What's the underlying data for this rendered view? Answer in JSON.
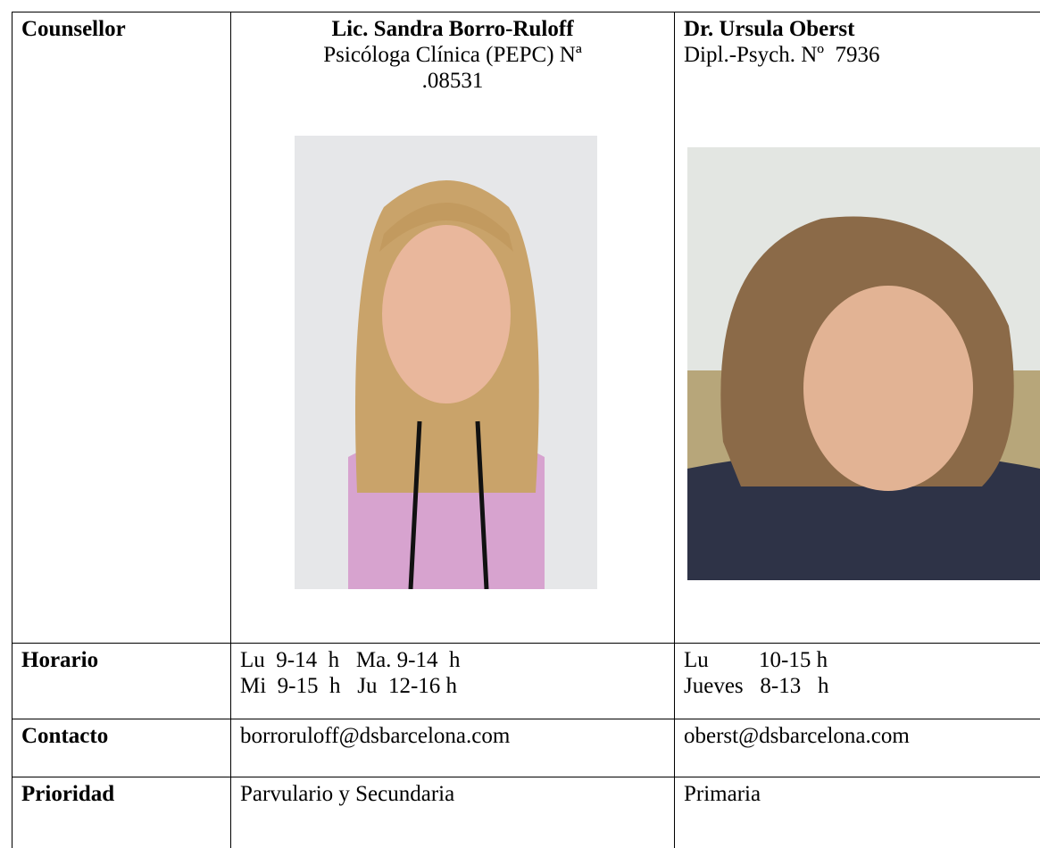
{
  "table": {
    "rows": [
      {
        "label": "Counsellor",
        "cells": [
          {
            "title": "Lic. Sandra Borro-Ruloff",
            "lines": [
              "Psicóloga Clínica (PEPC) Nª",
              ".08531"
            ]
          },
          {
            "title": "Dr. Ursula Oberst",
            "lines": [
              "Dipl.-Psych. Nº  7936"
            ]
          }
        ]
      },
      {
        "label": "Horario",
        "cells": [
          {
            "lines": [
              "Lu  9-14  h   Ma. 9-14  h",
              "Mi  9-15  h   Ju  12-16 h"
            ]
          },
          {
            "lines": [
              "Lu         10-15 h",
              "Jueves   8-13   h"
            ]
          }
        ]
      },
      {
        "label": "Contacto",
        "cells": [
          {
            "lines": [
              "borroruloff@dsbarcelona.com"
            ]
          },
          {
            "lines": [
              "oberst@dsbarcelona.com"
            ]
          }
        ]
      },
      {
        "label": "Prioridad",
        "cells": [
          {
            "lines": [
              "Parvulario y Secundaria"
            ]
          },
          {
            "lines": [
              "Primaria"
            ]
          }
        ]
      }
    ]
  }
}
